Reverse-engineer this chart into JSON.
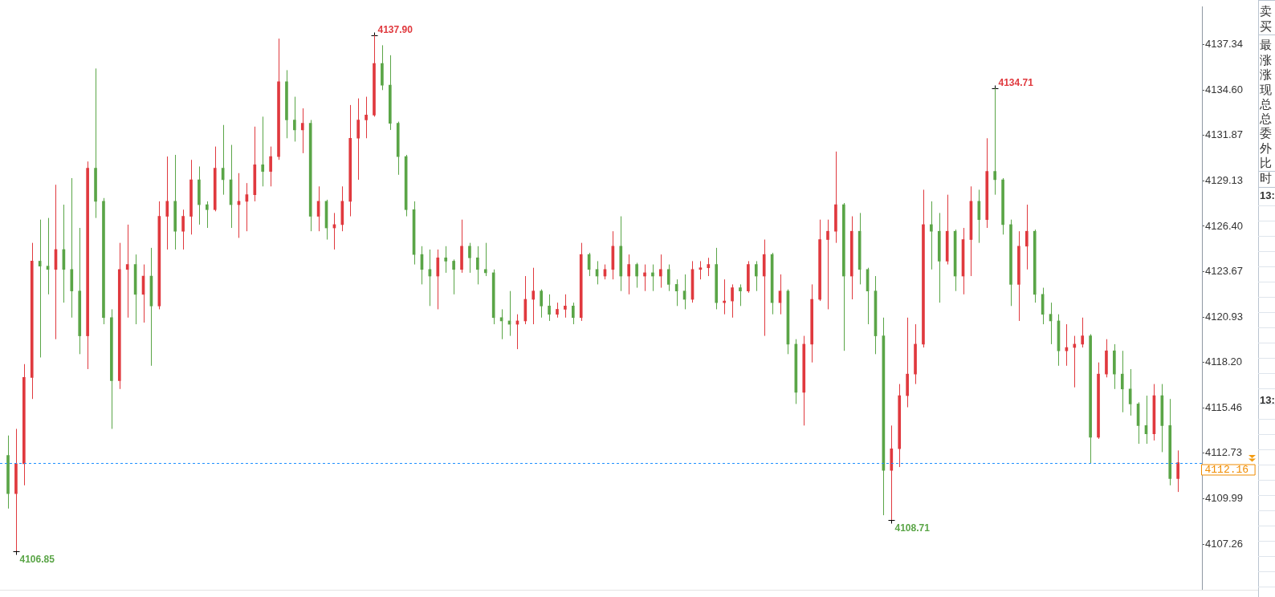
{
  "chart_data": {
    "type": "candlestick",
    "categories": [
      null,
      null,
      null,
      null,
      null,
      null,
      null,
      null,
      null,
      null,
      null,
      null,
      null,
      null,
      null,
      null,
      null,
      null,
      null,
      null,
      null,
      null,
      null,
      null,
      null,
      null,
      null,
      null,
      null,
      null,
      null,
      null,
      null,
      null,
      null,
      null,
      null,
      null,
      null,
      null,
      null,
      null,
      null,
      null,
      null,
      null,
      null,
      null,
      null,
      null,
      null,
      null,
      null,
      null,
      null,
      null,
      null,
      null,
      null,
      null,
      null,
      null,
      null,
      null,
      null,
      null,
      null,
      null,
      null,
      null,
      null,
      null,
      null,
      null,
      null,
      null,
      null,
      null,
      null,
      null,
      null,
      null,
      null,
      null,
      null,
      null,
      null,
      null,
      null,
      null,
      null,
      null,
      null,
      null,
      null,
      null,
      null,
      null,
      null,
      null,
      null,
      null,
      null,
      null,
      null,
      null,
      null,
      null,
      null,
      null,
      null,
      null,
      null,
      null,
      null,
      null,
      null,
      null,
      null,
      null,
      null,
      null,
      null,
      null,
      null,
      null,
      null,
      null,
      null,
      null,
      null,
      null,
      null,
      null,
      null,
      null,
      null,
      null,
      null,
      null,
      null,
      null,
      null,
      null,
      null,
      null,
      null,
      null
    ],
    "ohlc": [
      [
        4112.6,
        4113.8,
        4109.4,
        4110.3
      ],
      [
        4110.3,
        4114.2,
        4106.85,
        4112.1
      ],
      [
        4112.1,
        4118.1,
        4110.8,
        4117.3
      ],
      [
        4117.3,
        4125.4,
        4116.0,
        4124.3
      ],
      [
        4124.3,
        4126.8,
        4118.5,
        4124.0
      ],
      [
        4124.0,
        4126.9,
        4122.3,
        4123.8
      ],
      [
        4123.8,
        4128.9,
        4119.6,
        4125.0
      ],
      [
        4125.0,
        4127.7,
        4121.8,
        4123.8
      ],
      [
        4123.8,
        4129.3,
        4120.9,
        4122.5
      ],
      [
        4122.5,
        4126.3,
        4118.7,
        4119.8
      ],
      [
        4119.8,
        4130.3,
        4117.8,
        4129.9
      ],
      [
        4129.9,
        4135.9,
        4126.9,
        4127.9
      ],
      [
        4127.9,
        4128.1,
        4120.5,
        4120.9
      ],
      [
        4120.9,
        4121.4,
        4114.2,
        4117.1
      ],
      [
        4117.1,
        4125.4,
        4116.6,
        4123.8
      ],
      [
        4123.8,
        4126.5,
        4120.9,
        4124.1
      ],
      [
        4124.1,
        4124.7,
        4120.5,
        4122.3
      ],
      [
        4122.3,
        4124.1,
        4120.6,
        4123.4
      ],
      [
        4123.4,
        4125.1,
        4118.0,
        4121.6
      ],
      [
        4121.6,
        4127.9,
        4121.4,
        4127.0
      ],
      [
        4127.0,
        4130.6,
        4125.0,
        4127.9
      ],
      [
        4127.9,
        4130.7,
        4125.0,
        4126.1
      ],
      [
        4126.1,
        4127.4,
        4125.0,
        4127.0
      ],
      [
        4127.0,
        4130.4,
        4125.9,
        4129.2
      ],
      [
        4129.2,
        4130.0,
        4126.5,
        4127.7
      ],
      [
        4127.7,
        4127.9,
        4126.3,
        4127.4
      ],
      [
        4127.4,
        4131.2,
        4127.3,
        4129.9
      ],
      [
        4129.9,
        4132.5,
        4128.3,
        4129.2
      ],
      [
        4129.2,
        4131.3,
        4126.3,
        4127.7
      ],
      [
        4127.7,
        4129.6,
        4125.7,
        4127.9
      ],
      [
        4127.9,
        4129.0,
        4126.1,
        4128.3
      ],
      [
        4128.3,
        4132.4,
        4127.9,
        4130.1
      ],
      [
        4130.1,
        4133.0,
        4128.8,
        4129.7
      ],
      [
        4129.7,
        4131.2,
        4128.8,
        4130.6
      ],
      [
        4130.6,
        4137.7,
        4130.4,
        4135.1
      ],
      [
        4135.1,
        4135.8,
        4131.7,
        4132.8
      ],
      [
        4132.8,
        4134.2,
        4131.5,
        4132.2
      ],
      [
        4132.2,
        4133.5,
        4130.8,
        4132.6
      ],
      [
        4132.6,
        4132.8,
        4126.1,
        4127.0
      ],
      [
        4127.0,
        4128.8,
        4126.1,
        4127.9
      ],
      [
        4127.9,
        4128.0,
        4125.6,
        4126.3
      ],
      [
        4126.3,
        4127.2,
        4125.0,
        4126.5
      ],
      [
        4126.5,
        4128.8,
        4126.1,
        4127.9
      ],
      [
        4127.9,
        4133.7,
        4127.0,
        4131.7
      ],
      [
        4131.7,
        4134.1,
        4129.2,
        4132.8
      ],
      [
        4132.8,
        4134.2,
        4131.7,
        4133.1
      ],
      [
        4133.1,
        4137.9,
        4133.0,
        4136.2
      ],
      [
        4136.2,
        4137.3,
        4134.6,
        4134.9
      ],
      [
        4134.9,
        4136.7,
        4132.2,
        4132.6
      ],
      [
        4132.6,
        4132.7,
        4129.5,
        4130.6
      ],
      [
        4130.6,
        4130.7,
        4127.0,
        4127.4
      ],
      [
        4127.4,
        4127.9,
        4124.1,
        4124.7
      ],
      [
        4124.7,
        4125.2,
        4122.9,
        4123.8
      ],
      [
        4123.8,
        4125.0,
        4121.6,
        4123.4
      ],
      [
        4123.4,
        4125.0,
        4121.4,
        4124.5
      ],
      [
        4124.5,
        4125.2,
        4123.6,
        4124.3
      ],
      [
        4124.3,
        4124.4,
        4122.3,
        4123.8
      ],
      [
        4123.8,
        4126.8,
        4123.6,
        4125.2
      ],
      [
        4125.2,
        4125.4,
        4123.6,
        4124.5
      ],
      [
        4124.5,
        4125.2,
        4122.9,
        4123.8
      ],
      [
        4123.8,
        4125.4,
        4123.4,
        4123.6
      ],
      [
        4123.6,
        4123.8,
        4120.5,
        4120.9
      ],
      [
        4120.9,
        4121.4,
        4119.6,
        4120.7
      ],
      [
        4120.7,
        4122.5,
        4119.8,
        4120.5
      ],
      [
        4120.5,
        4121.1,
        4119.0,
        4120.7
      ],
      [
        4120.7,
        4123.4,
        4120.5,
        4122.0
      ],
      [
        4122.0,
        4123.9,
        4120.5,
        4122.5
      ],
      [
        4122.5,
        4122.6,
        4120.9,
        4121.6
      ],
      [
        4121.6,
        4122.3,
        4120.7,
        4121.1
      ],
      [
        4121.1,
        4121.8,
        4120.9,
        4121.4
      ],
      [
        4121.4,
        4122.3,
        4120.9,
        4121.6
      ],
      [
        4121.6,
        4121.8,
        4120.5,
        4120.9
      ],
      [
        4120.9,
        4125.4,
        4120.7,
        4124.7
      ],
      [
        4124.7,
        4124.8,
        4123.4,
        4123.8
      ],
      [
        4123.8,
        4124.3,
        4122.9,
        4123.4
      ],
      [
        4123.4,
        4124.1,
        4123.2,
        4123.8
      ],
      [
        4123.8,
        4126.1,
        4123.2,
        4125.2
      ],
      [
        4125.2,
        4127.0,
        4122.5,
        4123.4
      ],
      [
        4123.4,
        4124.7,
        4122.3,
        4124.1
      ],
      [
        4124.1,
        4124.2,
        4122.7,
        4123.4
      ],
      [
        4123.4,
        4124.1,
        4122.5,
        4123.6
      ],
      [
        4123.6,
        4124.1,
        4122.5,
        4123.4
      ],
      [
        4123.4,
        4124.7,
        4122.7,
        4123.8
      ],
      [
        4123.8,
        4124.1,
        4122.5,
        4122.9
      ],
      [
        4122.9,
        4123.2,
        4121.6,
        4122.5
      ],
      [
        4122.5,
        4123.5,
        4121.4,
        4122.0
      ],
      [
        4122.0,
        4124.3,
        4121.8,
        4123.8
      ],
      [
        4123.8,
        4124.3,
        4123.2,
        4123.9
      ],
      [
        4123.9,
        4124.5,
        4123.4,
        4124.1
      ],
      [
        4124.1,
        4125.1,
        4121.4,
        4121.8
      ],
      [
        4121.8,
        4123.2,
        4121.1,
        4121.9
      ],
      [
        4121.9,
        4122.9,
        4120.9,
        4122.7
      ],
      [
        4122.7,
        4122.9,
        4121.6,
        4122.5
      ],
      [
        4122.5,
        4124.3,
        4122.4,
        4124.1
      ],
      [
        4124.1,
        4124.3,
        4122.5,
        4123.4
      ],
      [
        4123.4,
        4125.6,
        4119.8,
        4124.7
      ],
      [
        4124.7,
        4124.8,
        4121.1,
        4121.8
      ],
      [
        4121.8,
        4123.5,
        4121.1,
        4122.5
      ],
      [
        4122.5,
        4122.6,
        4118.7,
        4119.3
      ],
      [
        4119.3,
        4119.6,
        4115.7,
        4116.4
      ],
      [
        4116.4,
        4119.8,
        4114.4,
        4119.3
      ],
      [
        4119.3,
        4122.9,
        4118.2,
        4122.0
      ],
      [
        4122.0,
        4126.8,
        4121.9,
        4125.6
      ],
      [
        4125.6,
        4126.8,
        4121.4,
        4126.1
      ],
      [
        4126.1,
        4130.9,
        4125.4,
        4127.7
      ],
      [
        4127.7,
        4127.8,
        4118.9,
        4123.4
      ],
      [
        4123.4,
        4127.0,
        4122.0,
        4126.1
      ],
      [
        4126.1,
        4127.2,
        4122.9,
        4123.8
      ],
      [
        4123.8,
        4123.9,
        4120.5,
        4122.5
      ],
      [
        4122.5,
        4123.4,
        4118.7,
        4119.8
      ],
      [
        4119.8,
        4120.9,
        4109.0,
        4111.7
      ],
      [
        4111.7,
        4114.4,
        4108.71,
        4113.0
      ],
      [
        4113.0,
        4116.9,
        4111.9,
        4116.2
      ],
      [
        4116.2,
        4120.9,
        4115.5,
        4117.5
      ],
      [
        4117.5,
        4120.5,
        4116.9,
        4119.3
      ],
      [
        4119.3,
        4128.6,
        4119.1,
        4126.5
      ],
      [
        4126.5,
        4127.9,
        4123.8,
        4126.1
      ],
      [
        4126.1,
        4127.2,
        4121.8,
        4124.3
      ],
      [
        4124.3,
        4128.3,
        4124.1,
        4126.1
      ],
      [
        4126.1,
        4126.2,
        4122.5,
        4123.4
      ],
      [
        4123.4,
        4126.3,
        4122.3,
        4125.6
      ],
      [
        4125.6,
        4128.8,
        4123.4,
        4127.9
      ],
      [
        4127.9,
        4128.6,
        4125.4,
        4126.8
      ],
      [
        4126.8,
        4131.7,
        4126.3,
        4129.7
      ],
      [
        4129.7,
        4134.71,
        4128.3,
        4129.2
      ],
      [
        4129.2,
        4129.3,
        4125.9,
        4126.5
      ],
      [
        4126.5,
        4126.8,
        4121.6,
        4122.9
      ],
      [
        4122.9,
        4126.1,
        4120.7,
        4125.2
      ],
      [
        4125.2,
        4127.7,
        4123.8,
        4126.1
      ],
      [
        4126.1,
        4126.2,
        4121.8,
        4122.3
      ],
      [
        4122.3,
        4122.7,
        4120.5,
        4121.1
      ],
      [
        4121.1,
        4121.8,
        4119.3,
        4120.7
      ],
      [
        4120.7,
        4121.1,
        4118.0,
        4118.9
      ],
      [
        4118.9,
        4120.5,
        4118.0,
        4119.1
      ],
      [
        4119.1,
        4119.8,
        4116.7,
        4119.3
      ],
      [
        4119.3,
        4120.9,
        4119.1,
        4119.8
      ],
      [
        4119.8,
        4119.9,
        4112.1,
        4113.7
      ],
      [
        4113.7,
        4118.2,
        4113.6,
        4117.5
      ],
      [
        4117.5,
        4119.6,
        4117.3,
        4118.9
      ],
      [
        4118.9,
        4119.3,
        4116.6,
        4117.5
      ],
      [
        4117.5,
        4118.9,
        4115.2,
        4116.6
      ],
      [
        4116.6,
        4117.8,
        4115.0,
        4115.7
      ],
      [
        4115.7,
        4115.8,
        4113.3,
        4114.4
      ],
      [
        4114.4,
        4116.2,
        4113.3,
        4113.9
      ],
      [
        4113.9,
        4116.9,
        4113.5,
        4116.2
      ],
      [
        4116.2,
        4116.9,
        4112.8,
        4114.4
      ],
      [
        4114.4,
        4116.0,
        4110.8,
        4111.2
      ],
      [
        4111.2,
        4112.9,
        4110.4,
        4112.16
      ]
    ],
    "colors": [
      "#5aa547",
      "#e0393e",
      "#e0393e",
      "#e0393e",
      "#5aa547",
      "#5aa547",
      "#e0393e",
      "#5aa547",
      "#5aa547",
      "#5aa547",
      "#e0393e",
      "#5aa547",
      "#5aa547",
      "#5aa547",
      "#e0393e",
      "#e0393e",
      "#5aa547",
      "#e0393e",
      "#5aa547",
      "#e0393e",
      "#e0393e",
      "#5aa547",
      "#e0393e",
      "#e0393e",
      "#5aa547",
      "#5aa547",
      "#e0393e",
      "#5aa547",
      "#5aa547",
      "#e0393e",
      "#e0393e",
      "#e0393e",
      "#5aa547",
      "#e0393e",
      "#e0393e",
      "#5aa547",
      "#5aa547",
      "#e0393e",
      "#5aa547",
      "#e0393e",
      "#5aa547",
      "#e0393e",
      "#e0393e",
      "#e0393e",
      "#e0393e",
      "#e0393e",
      "#e0393e",
      "#5aa547",
      "#5aa547",
      "#5aa547",
      "#5aa547",
      "#5aa547",
      "#5aa547",
      "#5aa547",
      "#e0393e",
      "#5aa547",
      "#5aa547",
      "#e0393e",
      "#5aa547",
      "#5aa547",
      "#5aa547",
      "#5aa547",
      "#5aa547",
      "#5aa547",
      "#e0393e",
      "#e0393e",
      "#e0393e",
      "#5aa547",
      "#5aa547",
      "#e0393e",
      "#e0393e",
      "#5aa547",
      "#e0393e",
      "#5aa547",
      "#5aa547",
      "#e0393e",
      "#e0393e",
      "#5aa547",
      "#e0393e",
      "#5aa547",
      "#e0393e",
      "#5aa547",
      "#e0393e",
      "#5aa547",
      "#5aa547",
      "#5aa547",
      "#e0393e",
      "#e0393e",
      "#e0393e",
      "#5aa547",
      "#e0393e",
      "#e0393e",
      "#5aa547",
      "#e0393e",
      "#5aa547",
      "#e0393e",
      "#5aa547",
      "#e0393e",
      "#5aa547",
      "#5aa547",
      "#e0393e",
      "#e0393e",
      "#e0393e",
      "#e0393e",
      "#e0393e",
      "#5aa547",
      "#e0393e",
      "#5aa547",
      "#5aa547",
      "#5aa547",
      "#5aa547",
      "#e0393e",
      "#e0393e",
      "#e0393e",
      "#e0393e",
      "#e0393e",
      "#5aa547",
      "#5aa547",
      "#e0393e",
      "#5aa547",
      "#e0393e",
      "#e0393e",
      "#5aa547",
      "#e0393e",
      "#5aa547",
      "#5aa547",
      "#5aa547",
      "#e0393e",
      "#e0393e",
      "#5aa547",
      "#5aa547",
      "#5aa547",
      "#5aa547",
      "#e0393e",
      "#e0393e",
      "#e0393e",
      "#5aa547",
      "#e0393e",
      "#e0393e",
      "#5aa547",
      "#5aa547",
      "#5aa547",
      "#5aa547",
      "#5aa547",
      "#e0393e",
      "#5aa547",
      "#5aa547",
      "#e0393e"
    ],
    "ylim": [
      4104.5,
      4139.6
    ],
    "yticks": [
      4107.26,
      4109.99,
      4112.73,
      4115.46,
      {
        "value": 4118.2,
        "label": "4118.20"
      },
      4120.93,
      4123.67,
      {
        "value": 4126.4,
        "label": "4126.40"
      },
      4129.13,
      4131.87,
      {
        "value": 4134.6,
        "label": "4134.60"
      },
      4137.34
    ],
    "tick_labels": "y",
    "ref_lines": [
      {
        "axis": "y",
        "value": 4112.16,
        "label": "4112.16",
        "color": "#1e90ff",
        "line_style": "dashed"
      }
    ],
    "annotations": [
      "4137.90",
      "4134.71",
      "4108.71",
      "4106.85",
      "卖",
      "买",
      "最",
      "涨",
      "涨",
      "现",
      "总",
      "总",
      "委",
      "外",
      "比",
      "时",
      "13:",
      "13:"
    ]
  }
}
